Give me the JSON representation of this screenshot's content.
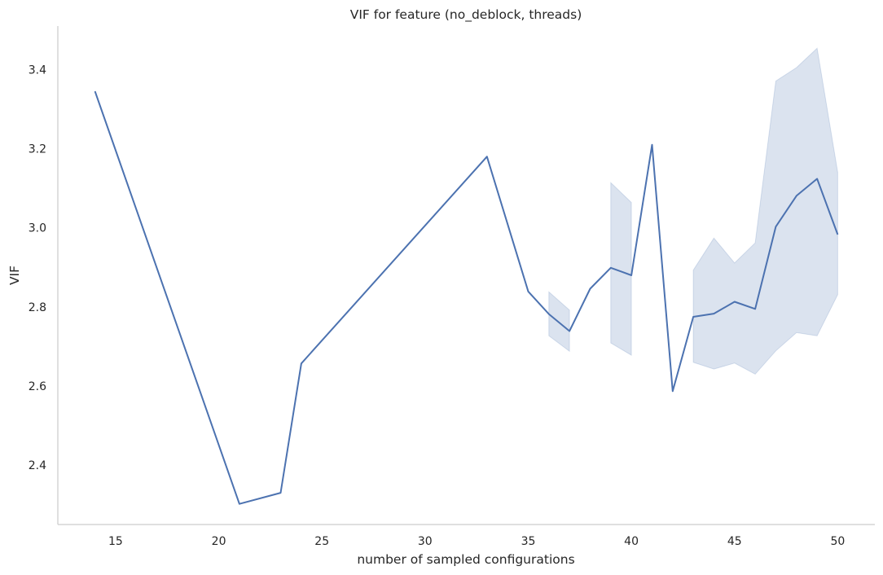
{
  "chart_data": {
    "type": "line",
    "title": "VIF for feature (no_deblock, threads)",
    "xlabel": "number of sampled configurations",
    "ylabel": "VIF",
    "xlim": [
      12.2,
      51.8
    ],
    "ylim": [
      2.25,
      3.51
    ],
    "x_ticks": [
      15,
      20,
      25,
      30,
      35,
      40,
      45,
      50
    ],
    "y_ticks": [
      2.4,
      2.6,
      2.8,
      3.0,
      3.2,
      3.4
    ],
    "x_tick_labels": [
      "15",
      "20",
      "25",
      "30",
      "35",
      "40",
      "45",
      "50"
    ],
    "y_tick_labels": [
      "2.4",
      "2.6",
      "2.8",
      "3.0",
      "3.2",
      "3.4"
    ],
    "grid": false,
    "line_color": "#4c72b0",
    "band_color": "#4c72b0",
    "series": [
      {
        "x": [
          14,
          21,
          23,
          24,
          33,
          35,
          36,
          37,
          38,
          39,
          40,
          41,
          42,
          43,
          44,
          45,
          46,
          47,
          48,
          49,
          50
        ],
        "y": [
          3.345,
          2.302,
          2.33,
          2.657,
          3.18,
          2.839,
          2.782,
          2.739,
          2.846,
          2.899,
          2.88,
          3.21,
          2.587,
          2.775,
          2.783,
          2.813,
          2.795,
          3.003,
          3.081,
          3.124,
          2.983
        ]
      }
    ],
    "confidence_bands": [
      {
        "x": [
          36,
          37
        ],
        "lower": [
          2.727,
          2.688
        ],
        "upper": [
          2.838,
          2.792
        ]
      },
      {
        "x": [
          39,
          40
        ],
        "lower": [
          2.709,
          2.678
        ],
        "upper": [
          3.114,
          3.064
        ]
      },
      {
        "x": [
          43,
          44,
          45,
          46,
          47,
          48,
          49,
          50
        ],
        "lower": [
          2.66,
          2.643,
          2.658,
          2.63,
          2.689,
          2.735,
          2.727,
          2.831
        ],
        "upper": [
          2.893,
          2.974,
          2.911,
          2.962,
          3.371,
          3.405,
          3.454,
          3.14
        ]
      }
    ]
  }
}
